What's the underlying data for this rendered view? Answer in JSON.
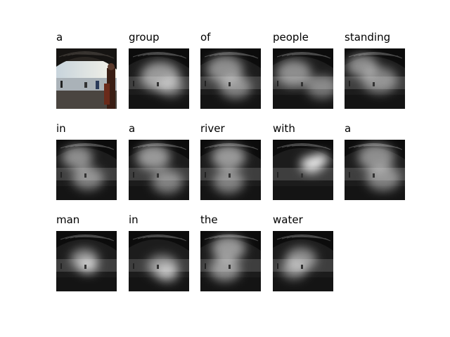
{
  "figure": {
    "words": [
      "a",
      "group",
      "of",
      "people",
      "standing",
      "in",
      "a",
      "river",
      "with",
      "a",
      "man",
      "in",
      "the",
      "water"
    ],
    "original_image_index": 0
  }
}
